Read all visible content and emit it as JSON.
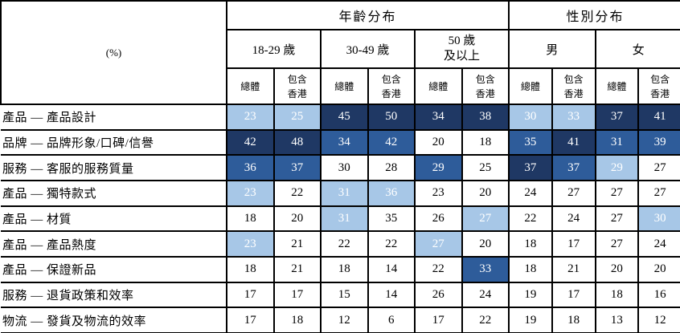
{
  "unit_label": "(%)",
  "colors": {
    "rank1_dark": "#1F3864",
    "rank2_medium": "#2E5C9A",
    "rank3_light": "#A7C7E7",
    "border": "#000000"
  },
  "header": {
    "age_group": "年齡分布",
    "gender_group": "性別分布",
    "age_18_29": "18-29 歲",
    "age_30_49": "30-49 歲",
    "age_50_line1": "50 歲",
    "age_50_line2": "及以上",
    "male": "男",
    "female": "女",
    "total": "總體",
    "incl_hk_line1": "包含",
    "incl_hk_line2": "香港"
  },
  "rows": [
    {
      "label": "產品 — 產品設計",
      "cells": [
        {
          "v": 23,
          "hl": "light"
        },
        {
          "v": 25,
          "hl": "light"
        },
        {
          "v": 45,
          "hl": "dark"
        },
        {
          "v": 50,
          "hl": "dark"
        },
        {
          "v": 34,
          "hl": "dark"
        },
        {
          "v": 38,
          "hl": "dark"
        },
        {
          "v": 30,
          "hl": "light"
        },
        {
          "v": 33,
          "hl": "light"
        },
        {
          "v": 37,
          "hl": "dark"
        },
        {
          "v": 41,
          "hl": "dark"
        }
      ]
    },
    {
      "label": "品牌 — 品牌形象/口碑/信譽",
      "cells": [
        {
          "v": 42,
          "hl": "dark"
        },
        {
          "v": 48,
          "hl": "dark"
        },
        {
          "v": 34,
          "hl": "mid"
        },
        {
          "v": 42,
          "hl": "mid"
        },
        {
          "v": 20,
          "hl": "none"
        },
        {
          "v": 18,
          "hl": "none"
        },
        {
          "v": 35,
          "hl": "mid"
        },
        {
          "v": 41,
          "hl": "dark"
        },
        {
          "v": 31,
          "hl": "mid"
        },
        {
          "v": 39,
          "hl": "mid"
        }
      ]
    },
    {
      "label": "服務 — 客服的服務質量",
      "cells": [
        {
          "v": 36,
          "hl": "mid"
        },
        {
          "v": 37,
          "hl": "mid"
        },
        {
          "v": 30,
          "hl": "none"
        },
        {
          "v": 28,
          "hl": "none"
        },
        {
          "v": 29,
          "hl": "mid"
        },
        {
          "v": 25,
          "hl": "none"
        },
        {
          "v": 37,
          "hl": "dark"
        },
        {
          "v": 37,
          "hl": "mid"
        },
        {
          "v": 29,
          "hl": "light"
        },
        {
          "v": 27,
          "hl": "none"
        }
      ]
    },
    {
      "label": "產品 — 獨特款式",
      "cells": [
        {
          "v": 23,
          "hl": "light"
        },
        {
          "v": 22,
          "hl": "none"
        },
        {
          "v": 31,
          "hl": "light"
        },
        {
          "v": 36,
          "hl": "light"
        },
        {
          "v": 23,
          "hl": "none"
        },
        {
          "v": 20,
          "hl": "none"
        },
        {
          "v": 24,
          "hl": "none"
        },
        {
          "v": 27,
          "hl": "none"
        },
        {
          "v": 27,
          "hl": "none"
        },
        {
          "v": 27,
          "hl": "none"
        }
      ]
    },
    {
      "label": "產品 — 材質",
      "cells": [
        {
          "v": 18,
          "hl": "none"
        },
        {
          "v": 20,
          "hl": "none"
        },
        {
          "v": 31,
          "hl": "light"
        },
        {
          "v": 35,
          "hl": "none"
        },
        {
          "v": 26,
          "hl": "none"
        },
        {
          "v": 27,
          "hl": "light"
        },
        {
          "v": 22,
          "hl": "none"
        },
        {
          "v": 24,
          "hl": "none"
        },
        {
          "v": 27,
          "hl": "none"
        },
        {
          "v": 30,
          "hl": "light"
        }
      ]
    },
    {
      "label": "產品 — 產品熱度",
      "cells": [
        {
          "v": 23,
          "hl": "light"
        },
        {
          "v": 21,
          "hl": "none"
        },
        {
          "v": 22,
          "hl": "none"
        },
        {
          "v": 22,
          "hl": "none"
        },
        {
          "v": 27,
          "hl": "light"
        },
        {
          "v": 20,
          "hl": "none"
        },
        {
          "v": 18,
          "hl": "none"
        },
        {
          "v": 17,
          "hl": "none"
        },
        {
          "v": 27,
          "hl": "none"
        },
        {
          "v": 24,
          "hl": "none"
        }
      ]
    },
    {
      "label": "產品 — 保證新品",
      "cells": [
        {
          "v": 18,
          "hl": "none"
        },
        {
          "v": 21,
          "hl": "none"
        },
        {
          "v": 18,
          "hl": "none"
        },
        {
          "v": 14,
          "hl": "none"
        },
        {
          "v": 22,
          "hl": "none"
        },
        {
          "v": 33,
          "hl": "mid"
        },
        {
          "v": 18,
          "hl": "none"
        },
        {
          "v": 21,
          "hl": "none"
        },
        {
          "v": 20,
          "hl": "none"
        },
        {
          "v": 20,
          "hl": "none"
        }
      ]
    },
    {
      "label": "服務 — 退貨政策和效率",
      "cells": [
        {
          "v": 17,
          "hl": "none"
        },
        {
          "v": 17,
          "hl": "none"
        },
        {
          "v": 15,
          "hl": "none"
        },
        {
          "v": 14,
          "hl": "none"
        },
        {
          "v": 26,
          "hl": "none"
        },
        {
          "v": 24,
          "hl": "none"
        },
        {
          "v": 19,
          "hl": "none"
        },
        {
          "v": 17,
          "hl": "none"
        },
        {
          "v": 18,
          "hl": "none"
        },
        {
          "v": 16,
          "hl": "none"
        }
      ]
    },
    {
      "label": "物流 — 發貨及物流的效率",
      "cells": [
        {
          "v": 17,
          "hl": "none"
        },
        {
          "v": 18,
          "hl": "none"
        },
        {
          "v": 12,
          "hl": "none"
        },
        {
          "v": 6,
          "hl": "none"
        },
        {
          "v": 17,
          "hl": "none"
        },
        {
          "v": 22,
          "hl": "none"
        },
        {
          "v": 19,
          "hl": "none"
        },
        {
          "v": 18,
          "hl": "none"
        },
        {
          "v": 13,
          "hl": "none"
        },
        {
          "v": 12,
          "hl": "none"
        }
      ]
    }
  ]
}
